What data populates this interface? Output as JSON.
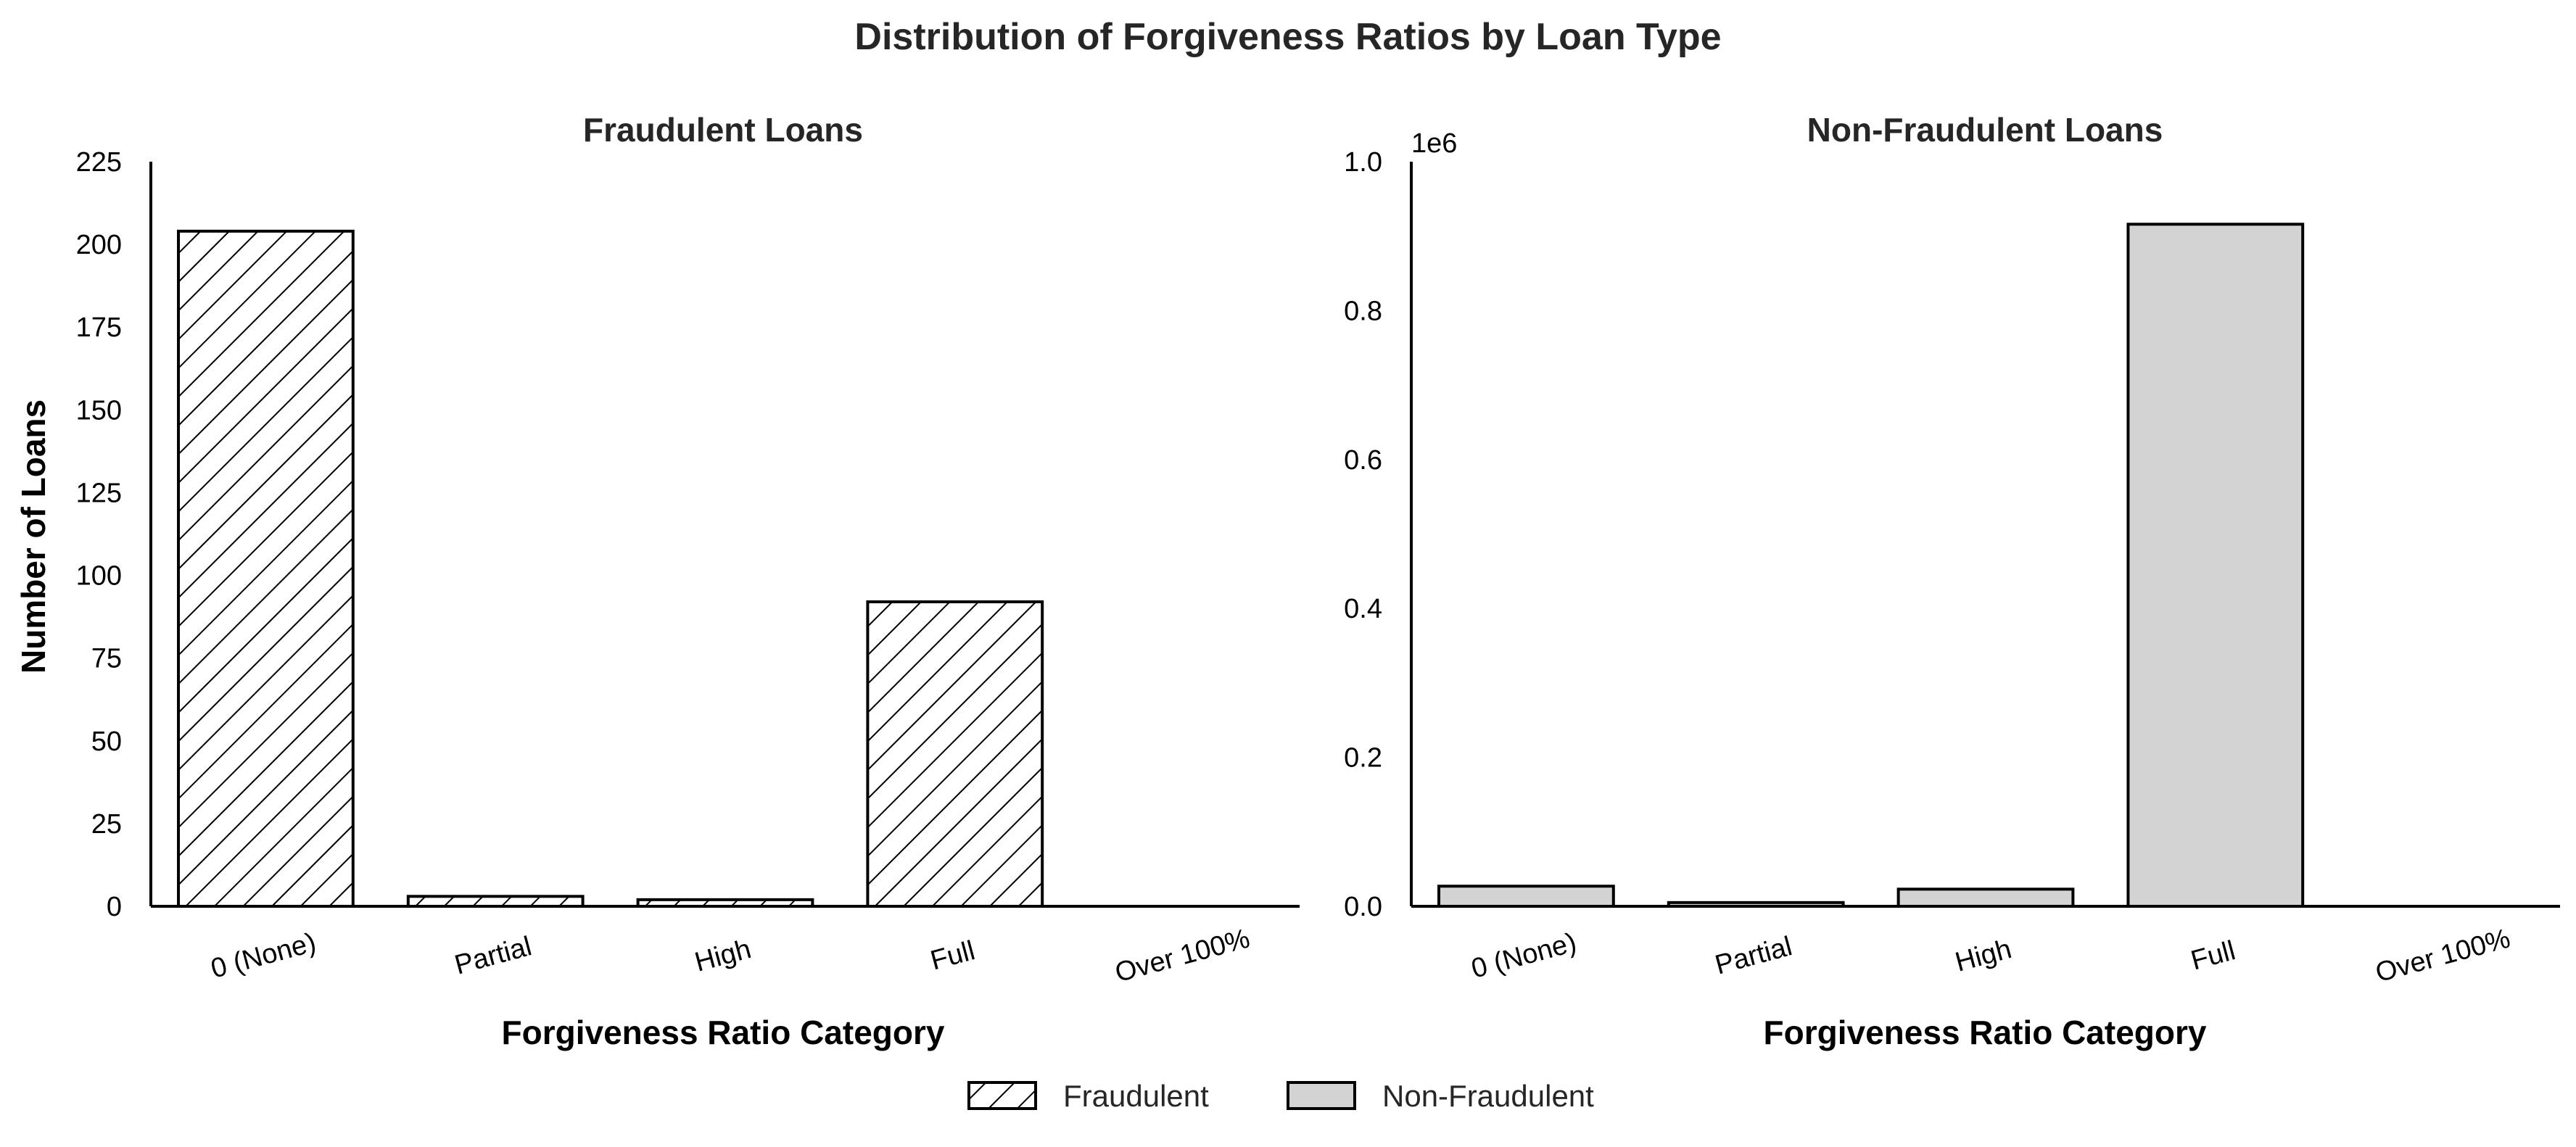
{
  "title": "Distribution of Forgiveness Ratios by Loan Type",
  "legend": {
    "fraudulent": "Fraudulent",
    "non_fraudulent": "Non-Fraudulent"
  },
  "colors": {
    "non_fraudulent_fill": "#d3d3d3",
    "fraudulent_fill": "#ffffff",
    "edge": "#000000"
  },
  "chart_data": [
    {
      "type": "bar",
      "title": "Fraudulent Loans",
      "xlabel": "Forgiveness Ratio Category",
      "ylabel": "Number of Loans",
      "categories": [
        "0 (None)",
        "Partial",
        "High",
        "Full",
        "Over 100%"
      ],
      "values": [
        204,
        3,
        2,
        92,
        0
      ],
      "ylim": [
        0,
        225
      ],
      "yticks": [
        "0",
        "25",
        "50",
        "75",
        "100",
        "125",
        "150",
        "175",
        "200",
        "225"
      ],
      "ytick_values": [
        0,
        25,
        50,
        75,
        100,
        125,
        150,
        175,
        200,
        225
      ],
      "pattern": "hatch",
      "grid": false
    },
    {
      "type": "bar",
      "title": "Non-Fraudulent Loans",
      "xlabel": "Forgiveness Ratio Category",
      "ylabel": "",
      "categories": [
        "0 (None)",
        "Partial",
        "High",
        "Full",
        "Over 100%"
      ],
      "values": [
        27000,
        5000,
        23000,
        916000,
        0
      ],
      "ylim": [
        0,
        1000000
      ],
      "scale_label": "1e6",
      "yticks": [
        "0.0",
        "0.2",
        "0.4",
        "0.6",
        "0.8",
        "1.0"
      ],
      "ytick_values": [
        0,
        200000,
        400000,
        600000,
        800000,
        1000000
      ],
      "pattern": "solid",
      "grid": false
    }
  ]
}
